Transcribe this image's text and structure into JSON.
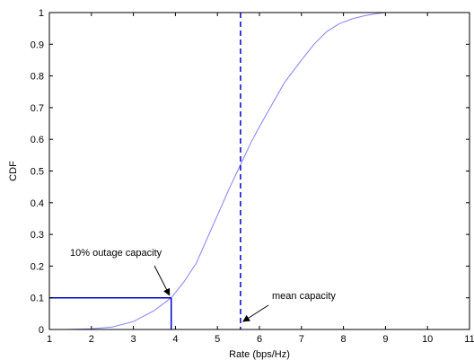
{
  "chart_data": {
    "type": "line",
    "title": "",
    "xlabel": "Rate (bps/Hz)",
    "ylabel": "CDF",
    "xlim": [
      1,
      11
    ],
    "ylim": [
      0,
      1
    ],
    "xticks": [
      1,
      2,
      3,
      4,
      5,
      6,
      7,
      8,
      9,
      10,
      11
    ],
    "yticks": [
      0,
      0.1,
      0.2,
      0.3,
      0.4,
      0.5,
      0.6,
      0.7,
      0.8,
      0.9,
      1
    ],
    "xtick_labels": [
      "1",
      "2",
      "3",
      "4",
      "5",
      "6",
      "7",
      "8",
      "9",
      "10",
      "11"
    ],
    "ytick_labels": [
      "0",
      "0.1",
      "0.2",
      "0.3",
      "0.4",
      "0.5",
      "0.6",
      "0.7",
      "0.8",
      "0.9",
      "1"
    ],
    "grid": false,
    "series": [
      {
        "name": "",
        "color": "#8080ff",
        "x": [
          1.4,
          2.0,
          2.5,
          3.0,
          3.5,
          3.9,
          4.2,
          4.5,
          4.8,
          5.0,
          5.3,
          5.55,
          5.8,
          6.0,
          6.3,
          6.6,
          7.0,
          7.3,
          7.6,
          7.9,
          8.2,
          8.5,
          8.8,
          9.0,
          9.3,
          10.0,
          11.0
        ],
        "y": [
          0.0,
          0.002,
          0.008,
          0.025,
          0.06,
          0.1,
          0.15,
          0.21,
          0.3,
          0.36,
          0.45,
          0.52,
          0.59,
          0.64,
          0.71,
          0.78,
          0.85,
          0.9,
          0.94,
          0.965,
          0.98,
          0.99,
          0.997,
          1.0,
          1.0,
          1.0,
          1.0
        ]
      }
    ],
    "mean_capacity": 5.55,
    "outage_capacity": {
      "x": 3.9,
      "y": 0.1
    },
    "annotations": [
      {
        "text": "10% outage capacity",
        "target_x": 3.9,
        "target_y": 0.1
      },
      {
        "text": "mean capacity",
        "target_x": 5.55,
        "target_y": 0.0
      }
    ],
    "colors": {
      "cdf": "#8080ff",
      "markers": "#0000cc",
      "axes": "#000000"
    }
  }
}
